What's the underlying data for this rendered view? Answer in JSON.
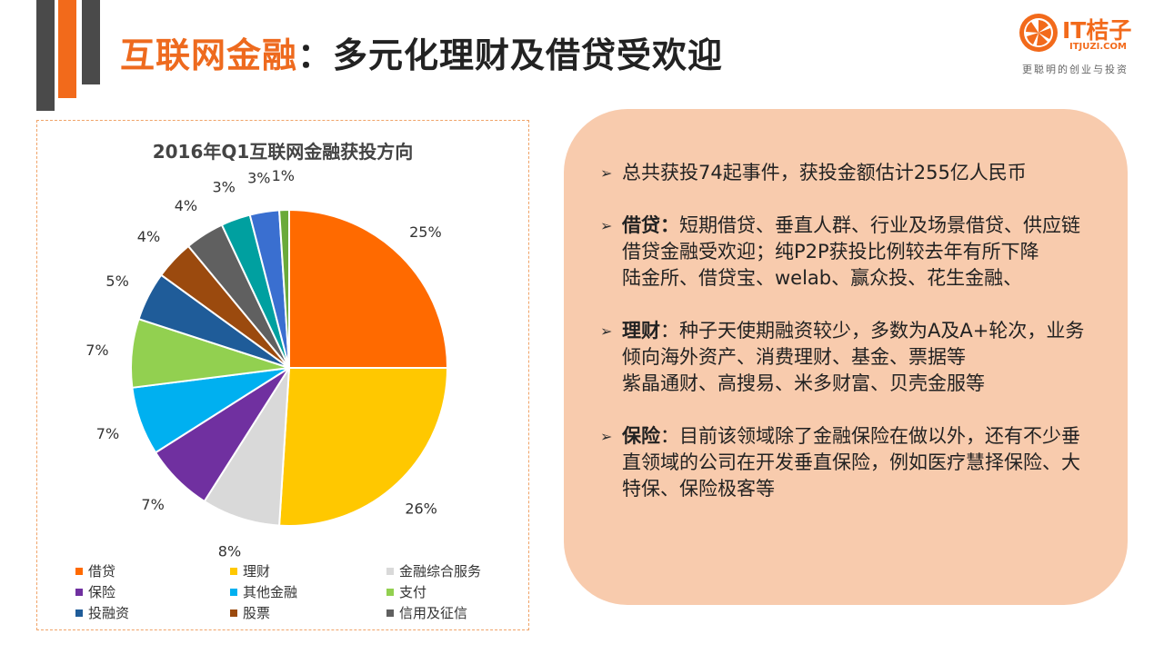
{
  "header": {
    "title_highlight": "互联网金融",
    "title_rest": "：多元化理财及借贷受欢迎"
  },
  "logo": {
    "name": "IT桔子",
    "domain": "ITJUZI.COM",
    "slogan": "更聪明的创业与投资"
  },
  "colors": {
    "accent": "#f26a1b",
    "panel": "#f8cbad",
    "dark_bar": "#4a4a4a"
  },
  "chart_data": {
    "type": "pie",
    "title": "2016年Q1互联网金融获投方向",
    "slices": [
      {
        "label": "借贷",
        "value": 25,
        "display": "25%",
        "color": "#ff6a00"
      },
      {
        "label": "理财",
        "value": 26,
        "display": "26%",
        "color": "#ffc800"
      },
      {
        "label": "金融综合服务",
        "value": 8,
        "display": "8%",
        "color": "#d9d9d9"
      },
      {
        "label": "保险",
        "value": 7,
        "display": "7%",
        "color": "#7030a0"
      },
      {
        "label": "其他金融",
        "value": 7,
        "display": "7%",
        "color": "#00b0f0"
      },
      {
        "label": "支付",
        "value": 7,
        "display": "7%",
        "color": "#92d050"
      },
      {
        "label": "投融资",
        "value": 5,
        "display": "5%",
        "color": "#1f5c99"
      },
      {
        "label": "股票",
        "value": 4,
        "display": "4%",
        "color": "#9b4a0e"
      },
      {
        "label": "信用及征信",
        "value": 4,
        "display": "4%",
        "color": "#606060"
      },
      {
        "label": "",
        "value": 3,
        "display": "3%",
        "color": "#00a0a0"
      },
      {
        "label": "",
        "value": 3,
        "display": "3%",
        "color": "#3a6fd0"
      },
      {
        "label": "",
        "value": 1,
        "display": "1%",
        "color": "#6aaa3a"
      }
    ],
    "legend_order": [
      "借贷",
      "理财",
      "金融综合服务",
      "保险",
      "其他金融",
      "支付",
      "投融资",
      "股票",
      "信用及征信"
    ],
    "legend_placement": "bottom"
  },
  "info": {
    "items": [
      {
        "label": "",
        "text": "总共获投74起事件，获投金额估计255亿人民币",
        "extra": ""
      },
      {
        "label": "借贷：",
        "text": "短期借贷、垂直人群、行业及场景借贷、供应链借贷金融受欢迎；纯P2P获投比例较去年有所下降",
        "extra": "陆金所、借贷宝、welab、赢众投、花生金融、"
      },
      {
        "label": "理财",
        "text": "：种子天使期融资较少，多数为A及A+轮次，业务倾向海外资产、消费理财、基金、票据等",
        "extra": "紫晶通财、高搜易、米多财富、贝壳金服等"
      },
      {
        "label": "保险",
        "text": "：目前该领域除了金融保险在做以外，还有不少垂直领域的公司在开发垂直保险，例如医疗慧择保险、大特保、保险极客等",
        "extra": ""
      }
    ]
  }
}
